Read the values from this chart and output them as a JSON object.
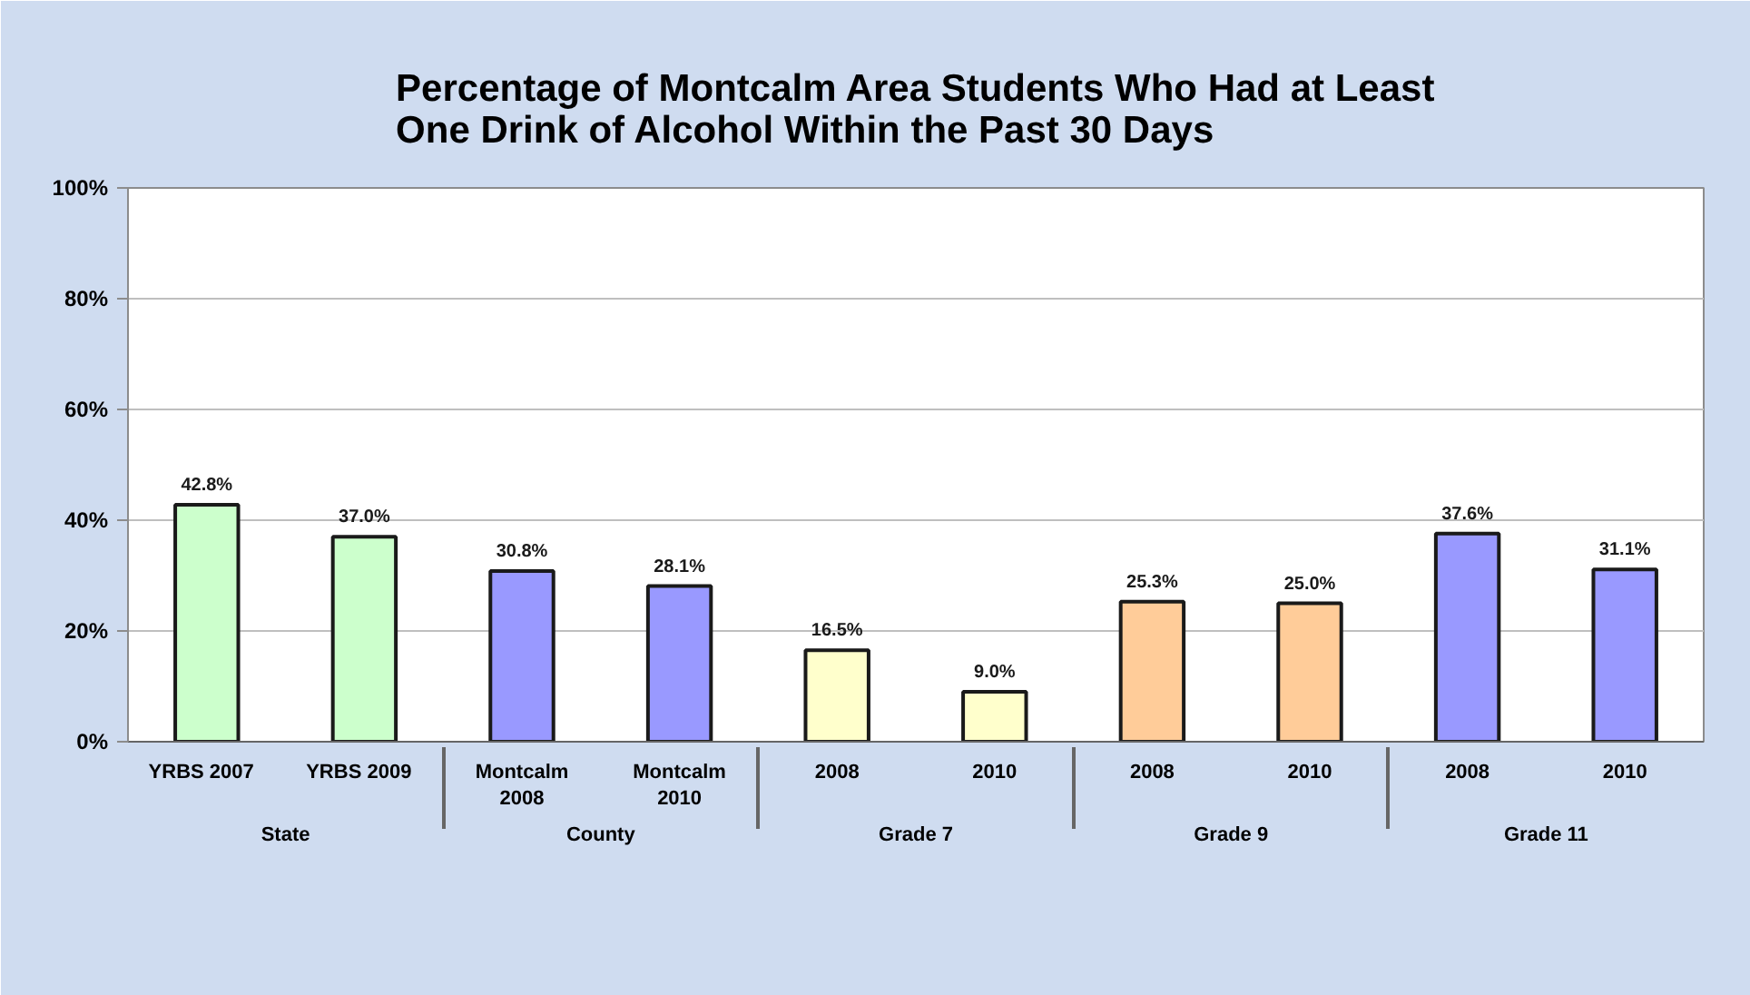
{
  "chart_data": {
    "type": "bar",
    "title": "Percentage of Montcalm Area Students Who Had at Least\nOne Drink of Alcohol Within the Past 30 Days",
    "categories": [
      "YRBS   2007",
      "YRBS   2009",
      "Montcalm\n2008",
      "Montcalm\n2010",
      "2008",
      "2010",
      "2008",
      "2010",
      "2008",
      "2010"
    ],
    "annotations": [
      "State",
      "County",
      "Grade 7",
      "Grade 9",
      "Grade 11"
    ],
    "values": [
      42.8,
      37.0,
      30.8,
      28.1,
      16.5,
      9.0,
      25.3,
      25.0,
      37.6,
      31.1
    ],
    "value_labels": [
      "42.8%",
      "37.0%",
      "30.8%",
      "28.1%",
      "16.5%",
      "9.0%",
      "25.3%",
      "25.0%",
      "37.6%",
      "31.1%"
    ],
    "colors": [
      "#ccffcc",
      "#ccffcc",
      "#9999ff",
      "#9999ff",
      "#ffffcc",
      "#ffffcc",
      "#ffcc99",
      "#ffcc99",
      "#9999ff",
      "#9999ff"
    ],
    "ylim": [
      0,
      100
    ],
    "yticks": [
      {
        "value": 0,
        "label": "0%"
      },
      {
        "value": 20,
        "label": "20%"
      },
      {
        "value": 40,
        "label": "40%"
      },
      {
        "value": 60,
        "label": "60%"
      },
      {
        "value": 80,
        "label": "80%"
      },
      {
        "value": 100,
        "label": "100%"
      }
    ],
    "grid": "y"
  }
}
